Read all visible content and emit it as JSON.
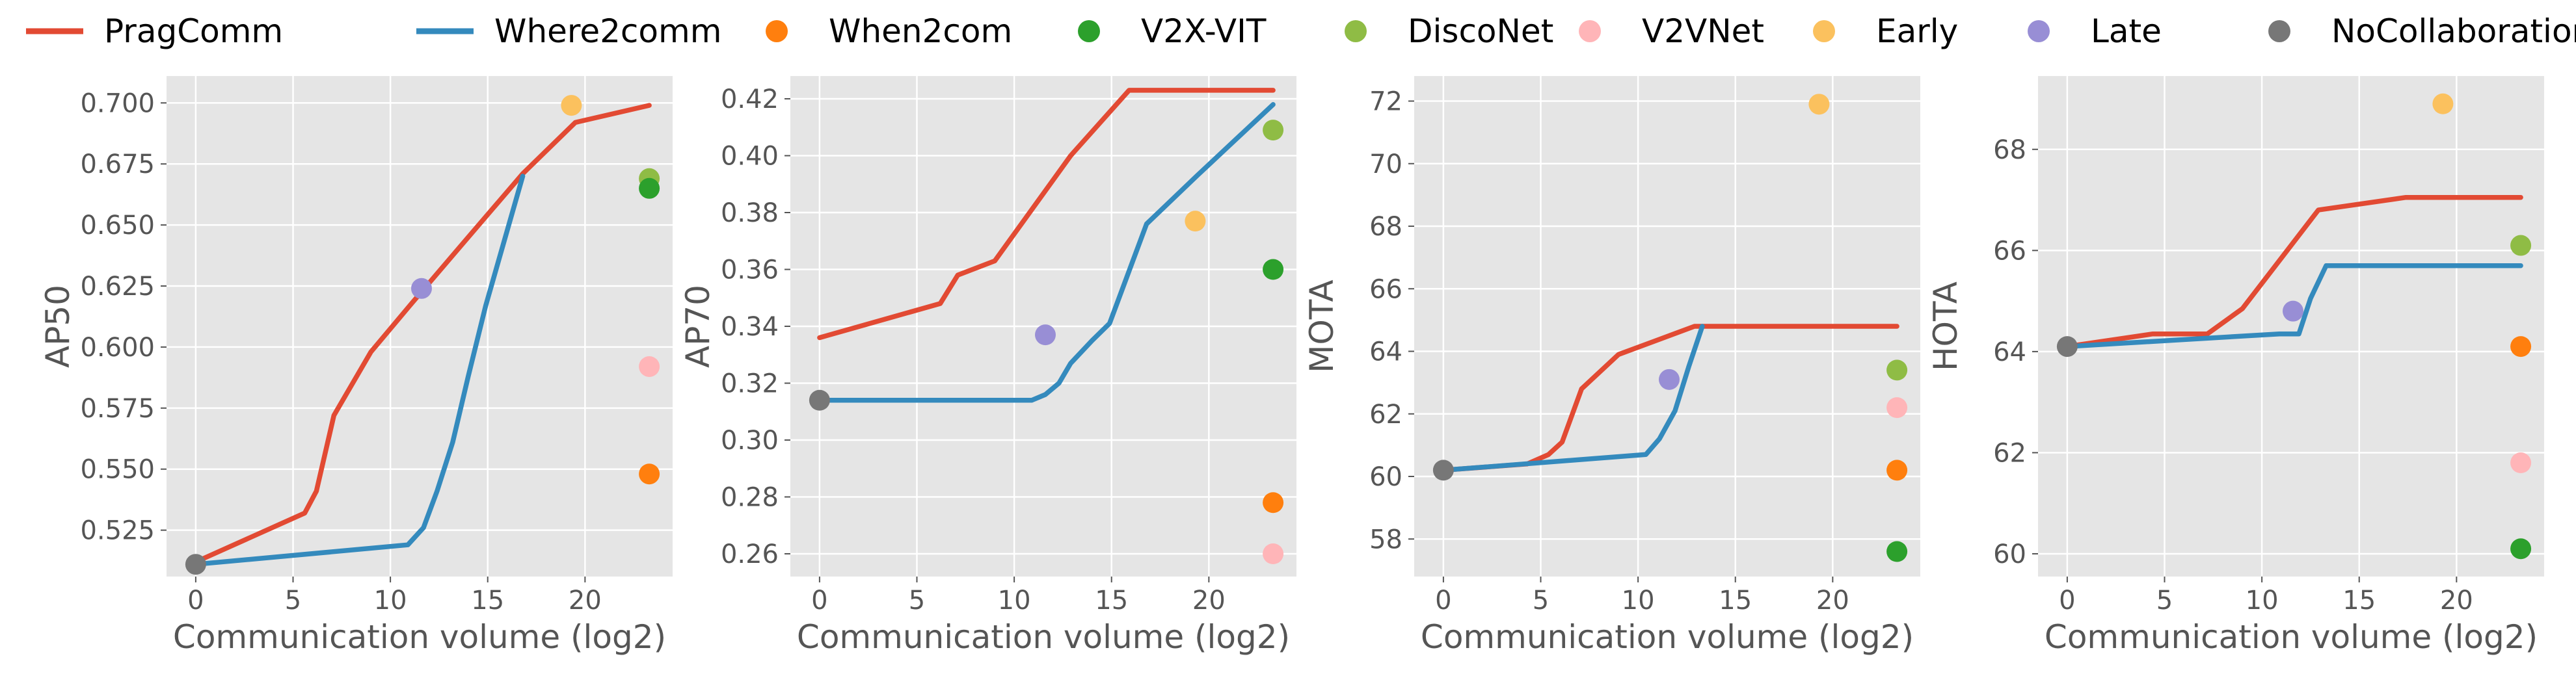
{
  "colors": {
    "PragComm": "#e24a33",
    "Where2comm": "#348abd",
    "When2com": "#ff7f0e",
    "V2X-VIT": "#2ca02c",
    "DiscoNet": "#8fbc45",
    "V2VNet": "#ffb5b8",
    "Early": "#fbc15e",
    "Late": "#988ed5",
    "NoCollaboration": "#777777",
    "panel_bg": "#e5e5e5",
    "grid": "#ffffff"
  },
  "legend": {
    "placement": "top",
    "entries": [
      {
        "name": "PragComm",
        "kind": "line"
      },
      {
        "name": "Where2comm",
        "kind": "line"
      },
      {
        "name": "When2com",
        "kind": "marker"
      },
      {
        "name": "V2X-VIT",
        "kind": "marker"
      },
      {
        "name": "DiscoNet",
        "kind": "marker"
      },
      {
        "name": "V2VNet",
        "kind": "marker"
      },
      {
        "name": "Early",
        "kind": "marker"
      },
      {
        "name": "Late",
        "kind": "marker"
      },
      {
        "name": "NoCollaboration",
        "kind": "marker"
      }
    ]
  },
  "chart_data": [
    {
      "type": "line",
      "xlabel": "Communication volume (log2)",
      "ylabel": "AP50",
      "xlim": [
        -1.5,
        24.5
      ],
      "ylim": [
        0.506,
        0.711
      ],
      "xticks": [
        0,
        5,
        10,
        15,
        20
      ],
      "xtick_labels": [
        "0",
        "5",
        "10",
        "15",
        "20"
      ],
      "yticks": [
        0.525,
        0.55,
        0.575,
        0.6,
        0.625,
        0.65,
        0.675,
        0.7
      ],
      "ytick_labels": [
        "0.525",
        "0.550",
        "0.575",
        "0.600",
        "0.625",
        "0.650",
        "0.675",
        "0.700"
      ],
      "grid": true,
      "series": [
        {
          "name": "PragComm",
          "x": [
            0,
            5.6,
            6.2,
            7.1,
            9.0,
            11.0,
            14.0,
            16.8,
            19.5,
            23.3
          ],
          "y": [
            0.512,
            0.532,
            0.541,
            0.572,
            0.598,
            0.617,
            0.645,
            0.671,
            0.692,
            0.699
          ]
        },
        {
          "name": "Where2comm",
          "x": [
            0,
            10.9,
            11.7,
            12.4,
            13.2,
            14.0,
            14.9,
            16.8
          ],
          "y": [
            0.511,
            0.519,
            0.526,
            0.541,
            0.561,
            0.588,
            0.617,
            0.67
          ]
        }
      ],
      "points": [
        {
          "name": "Early",
          "x": 19.3,
          "y": 0.699
        },
        {
          "name": "DiscoNet",
          "x": 23.3,
          "y": 0.669
        },
        {
          "name": "V2X-VIT",
          "x": 23.3,
          "y": 0.665
        },
        {
          "name": "Late",
          "x": 11.6,
          "y": 0.624
        },
        {
          "name": "V2VNet",
          "x": 23.3,
          "y": 0.592
        },
        {
          "name": "When2com",
          "x": 23.3,
          "y": 0.548
        },
        {
          "name": "NoCollaboration",
          "x": 0,
          "y": 0.511
        }
      ]
    },
    {
      "type": "line",
      "xlabel": "Communication volume (log2)",
      "ylabel": "AP70",
      "xlim": [
        -1.5,
        24.5
      ],
      "ylim": [
        0.252,
        0.428
      ],
      "xticks": [
        0,
        5,
        10,
        15,
        20
      ],
      "xtick_labels": [
        "0",
        "5",
        "10",
        "15",
        "20"
      ],
      "yticks": [
        0.26,
        0.28,
        0.3,
        0.32,
        0.34,
        0.36,
        0.38,
        0.4,
        0.42
      ],
      "ytick_labels": [
        "0.26",
        "0.28",
        "0.30",
        "0.32",
        "0.34",
        "0.36",
        "0.38",
        "0.40",
        "0.42"
      ],
      "grid": true,
      "series": [
        {
          "name": "PragComm",
          "x": [
            0,
            6.2,
            7.1,
            9.0,
            12.9,
            15.9,
            19.4,
            23.3
          ],
          "y": [
            0.336,
            0.348,
            0.358,
            0.363,
            0.4,
            0.423,
            0.423,
            0.423
          ]
        },
        {
          "name": "Where2comm",
          "x": [
            0,
            10.9,
            11.6,
            12.3,
            12.9,
            14.0,
            14.9,
            16.8,
            19.4,
            23.3
          ],
          "y": [
            0.314,
            0.314,
            0.316,
            0.32,
            0.327,
            0.335,
            0.341,
            0.376,
            0.393,
            0.418
          ]
        }
      ],
      "points": [
        {
          "name": "DiscoNet",
          "x": 23.3,
          "y": 0.409
        },
        {
          "name": "Early",
          "x": 19.3,
          "y": 0.377
        },
        {
          "name": "V2X-VIT",
          "x": 23.3,
          "y": 0.36
        },
        {
          "name": "Late",
          "x": 11.6,
          "y": 0.337
        },
        {
          "name": "NoCollaboration",
          "x": 0,
          "y": 0.314
        },
        {
          "name": "When2com",
          "x": 23.3,
          "y": 0.278
        },
        {
          "name": "V2VNet",
          "x": 23.3,
          "y": 0.26
        }
      ]
    },
    {
      "type": "line",
      "xlabel": "Communication volume (log2)",
      "ylabel": "MOTA",
      "xlim": [
        -1.5,
        24.5
      ],
      "ylim": [
        56.8,
        72.8
      ],
      "xticks": [
        0,
        5,
        10,
        15,
        20
      ],
      "xtick_labels": [
        "0",
        "5",
        "10",
        "15",
        "20"
      ],
      "yticks": [
        58,
        60,
        62,
        64,
        66,
        68,
        70,
        72
      ],
      "ytick_labels": [
        "58",
        "60",
        "62",
        "64",
        "66",
        "68",
        "70",
        "72"
      ],
      "grid": true,
      "series": [
        {
          "name": "PragComm",
          "x": [
            0,
            4.3,
            5.4,
            6.1,
            7.1,
            9.0,
            12.9,
            16.0,
            23.3
          ],
          "y": [
            60.2,
            60.4,
            60.7,
            61.1,
            62.8,
            63.9,
            64.8,
            64.8,
            64.8
          ]
        },
        {
          "name": "Where2comm",
          "x": [
            0,
            10.4,
            11.1,
            11.9,
            12.6,
            13.3
          ],
          "y": [
            60.2,
            60.7,
            61.2,
            62.1,
            63.5,
            64.8
          ]
        }
      ],
      "points": [
        {
          "name": "Early",
          "x": 19.3,
          "y": 71.9
        },
        {
          "name": "DiscoNet",
          "x": 23.3,
          "y": 63.4
        },
        {
          "name": "Late",
          "x": 11.6,
          "y": 63.1
        },
        {
          "name": "V2VNet",
          "x": 23.3,
          "y": 62.2
        },
        {
          "name": "When2com",
          "x": 23.3,
          "y": 60.2
        },
        {
          "name": "NoCollaboration",
          "x": 0,
          "y": 60.2
        },
        {
          "name": "V2X-VIT",
          "x": 23.3,
          "y": 57.6
        }
      ]
    },
    {
      "type": "line",
      "xlabel": "Communication volume (log2)",
      "ylabel": "HOTA",
      "xlim": [
        -1.5,
        24.5
      ],
      "ylim": [
        59.55,
        69.45
      ],
      "xticks": [
        0,
        5,
        10,
        15,
        20
      ],
      "xtick_labels": [
        "0",
        "5",
        "10",
        "15",
        "20"
      ],
      "yticks": [
        60,
        62,
        64,
        66,
        68
      ],
      "ytick_labels": [
        "60",
        "62",
        "64",
        "66",
        "68"
      ],
      "grid": true,
      "series": [
        {
          "name": "PragComm",
          "x": [
            0,
            4.4,
            7.2,
            9.0,
            12.9,
            17.4,
            23.3
          ],
          "y": [
            64.1,
            64.35,
            64.35,
            64.85,
            66.8,
            67.05,
            67.05
          ]
        },
        {
          "name": "Where2comm",
          "x": [
            0,
            10.9,
            11.9,
            12.5,
            13.3,
            23.3
          ],
          "y": [
            64.1,
            64.35,
            64.35,
            65.05,
            65.7,
            65.7
          ]
        }
      ],
      "points": [
        {
          "name": "Early",
          "x": 19.3,
          "y": 68.9
        },
        {
          "name": "DiscoNet",
          "x": 23.3,
          "y": 66.1
        },
        {
          "name": "Late",
          "x": 11.6,
          "y": 64.8
        },
        {
          "name": "When2com",
          "x": 23.3,
          "y": 64.1
        },
        {
          "name": "NoCollaboration",
          "x": 0,
          "y": 64.1
        },
        {
          "name": "V2VNet",
          "x": 23.3,
          "y": 61.8
        },
        {
          "name": "V2X-VIT",
          "x": 23.3,
          "y": 60.1
        }
      ]
    }
  ]
}
